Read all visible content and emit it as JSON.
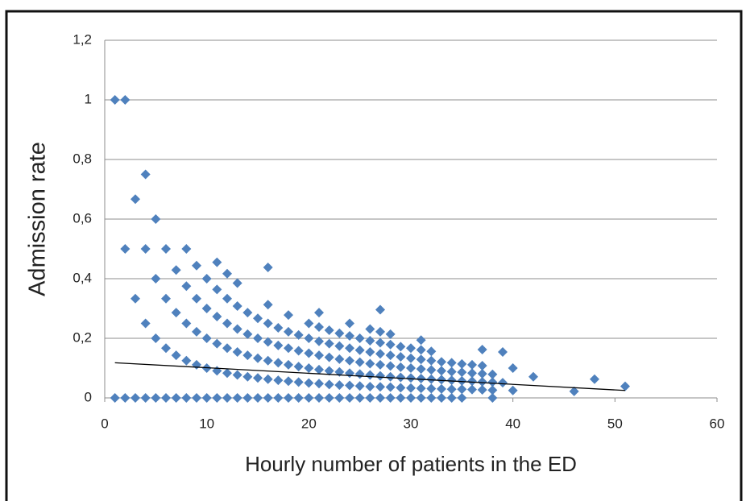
{
  "chart_data": {
    "type": "scatter",
    "x_label": "Hourly number of patients in the ED",
    "y_label": "Admission rate",
    "color": "#4f81bd",
    "grid": true,
    "xlim": [
      0,
      60
    ],
    "ylim": [
      0,
      1.2
    ],
    "xticks": [
      0,
      10,
      20,
      30,
      40,
      50,
      60
    ],
    "yticks": [
      0,
      {
        "value": 0.2,
        "label": "0,2"
      },
      {
        "value": 0.4,
        "label": "0,4"
      },
      {
        "value": 0.6,
        "label": "0,6"
      },
      {
        "value": 0.8,
        "label": "0,8"
      },
      1,
      {
        "value": 1.2,
        "label": "1,2"
      }
    ],
    "x": [
      1,
      1,
      2,
      2,
      2,
      3,
      3,
      3,
      4,
      4,
      4,
      4,
      5,
      5,
      5,
      5,
      6,
      6,
      6,
      6,
      7,
      7,
      7,
      7,
      8,
      8,
      8,
      8,
      8,
      9,
      9,
      9,
      9,
      9,
      10,
      10,
      10,
      10,
      10,
      11,
      11,
      11,
      11,
      11,
      11,
      12,
      12,
      12,
      12,
      12,
      12,
      13,
      13,
      13,
      13,
      13,
      13,
      14,
      14,
      14,
      14,
      14,
      15,
      15,
      15,
      15,
      15,
      16,
      16,
      16,
      16,
      16,
      16,
      16,
      17,
      17,
      17,
      17,
      17,
      18,
      18,
      18,
      18,
      18,
      18,
      19,
      19,
      19,
      19,
      19,
      20,
      20,
      20,
      20,
      20,
      20,
      21,
      21,
      21,
      21,
      21,
      21,
      21,
      22,
      22,
      22,
      22,
      22,
      22,
      23,
      23,
      23,
      23,
      23,
      23,
      24,
      24,
      24,
      24,
      24,
      24,
      24,
      25,
      25,
      25,
      25,
      25,
      25,
      26,
      26,
      26,
      26,
      26,
      26,
      26,
      27,
      27,
      27,
      27,
      27,
      27,
      27,
      27,
      28,
      28,
      28,
      28,
      28,
      28,
      28,
      29,
      29,
      29,
      29,
      29,
      29,
      30,
      30,
      30,
      30,
      30,
      30,
      31,
      31,
      31,
      31,
      31,
      31,
      31,
      32,
      32,
      32,
      32,
      32,
      32,
      33,
      33,
      33,
      33,
      33,
      34,
      34,
      34,
      34,
      34,
      35,
      35,
      35,
      35,
      35,
      36,
      36,
      36,
      36,
      37,
      37,
      37,
      37,
      37,
      38,
      38,
      38,
      38,
      39,
      39,
      40,
      40,
      42,
      46,
      48,
      51
    ],
    "y": [
      0,
      1,
      0,
      1,
      0.5,
      0,
      0.333,
      0.667,
      0,
      0.25,
      0.5,
      0.75,
      0,
      0.2,
      0.4,
      0.6,
      0,
      0.167,
      0.333,
      0.5,
      0,
      0.143,
      0.286,
      0.429,
      0,
      0.125,
      0.25,
      0.375,
      0.5,
      0,
      0.111,
      0.222,
      0.333,
      0.444,
      0,
      0.1,
      0.2,
      0.3,
      0.4,
      0,
      0.091,
      0.182,
      0.273,
      0.364,
      0.455,
      0,
      0.083,
      0.167,
      0.25,
      0.333,
      0.417,
      0,
      0.077,
      0.154,
      0.231,
      0.308,
      0.385,
      0,
      0.071,
      0.143,
      0.214,
      0.286,
      0,
      0.067,
      0.133,
      0.2,
      0.267,
      0,
      0.063,
      0.125,
      0.188,
      0.25,
      0.313,
      0.438,
      0,
      0.059,
      0.118,
      0.176,
      0.235,
      0,
      0.056,
      0.111,
      0.167,
      0.222,
      0.278,
      0,
      0.053,
      0.105,
      0.158,
      0.211,
      0,
      0.05,
      0.1,
      0.15,
      0.2,
      0.25,
      0,
      0.048,
      0.095,
      0.143,
      0.19,
      0.238,
      0.286,
      0,
      0.045,
      0.091,
      0.136,
      0.182,
      0.227,
      0,
      0.043,
      0.087,
      0.13,
      0.174,
      0.217,
      0,
      0.042,
      0.083,
      0.125,
      0.167,
      0.208,
      0.25,
      0,
      0.04,
      0.08,
      0.12,
      0.16,
      0.2,
      0,
      0.038,
      0.077,
      0.115,
      0.154,
      0.192,
      0.231,
      0,
      0.037,
      0.074,
      0.111,
      0.148,
      0.185,
      0.222,
      0.296,
      0,
      0.036,
      0.071,
      0.107,
      0.143,
      0.179,
      0.214,
      0,
      0.034,
      0.069,
      0.103,
      0.138,
      0.172,
      0,
      0.033,
      0.067,
      0.1,
      0.133,
      0.167,
      0,
      0.032,
      0.065,
      0.097,
      0.129,
      0.161,
      0.194,
      0,
      0.031,
      0.063,
      0.094,
      0.125,
      0.156,
      0,
      0.03,
      0.061,
      0.091,
      0.121,
      0,
      0.029,
      0.059,
      0.088,
      0.118,
      0,
      0.029,
      0.057,
      0.086,
      0.114,
      0.028,
      0.056,
      0.083,
      0.111,
      0.027,
      0.054,
      0.081,
      0.108,
      0.162,
      0,
      0.026,
      0.053,
      0.079,
      0.051,
      0.154,
      0.025,
      0.1,
      0.071,
      0.022,
      0.063,
      0.039
    ],
    "trendline": {
      "color": "#000000",
      "x": [
        1,
        51
      ],
      "y": [
        0.118,
        0.025
      ]
    }
  }
}
